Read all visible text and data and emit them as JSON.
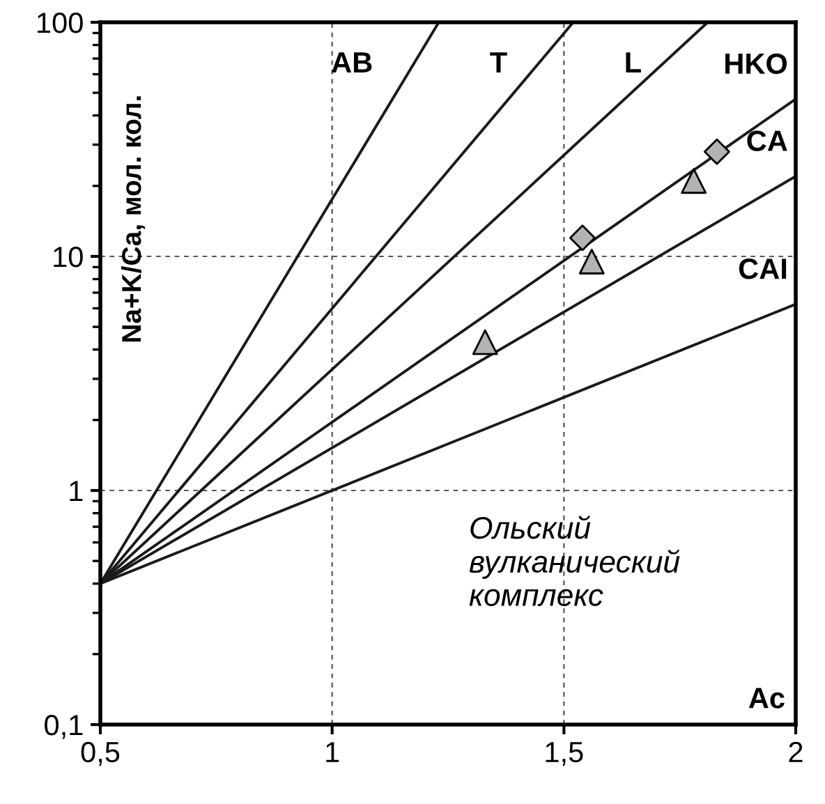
{
  "chart_data": {
    "type": "line",
    "ylabel": "Na+K/Ca, мол. кол.",
    "log": "y",
    "grid": true,
    "line_style": "solid",
    "marker": "none",
    "xlim": [
      0.5,
      2
    ],
    "xticks": [
      {
        "value": 0.5,
        "label": "0,5"
      },
      1,
      {
        "value": 1.5,
        "label": "1,5"
      },
      2
    ],
    "ylim": [
      0.1,
      100
    ],
    "yticks": [
      {
        "value": 0.1,
        "label": "0,1"
      },
      1,
      10,
      100
    ],
    "series": [
      {
        "name": "AB",
        "color": "#1a1a1a",
        "x": [
          0.5,
          1.23
        ],
        "values": [
          0.4,
          100
        ]
      },
      {
        "name": "T",
        "color": "#1a1a1a",
        "x": [
          0.5,
          1.52
        ],
        "values": [
          0.4,
          100
        ]
      },
      {
        "name": "L",
        "color": "#1a1a1a",
        "x": [
          0.5,
          1.81
        ],
        "values": [
          0.4,
          100
        ]
      },
      {
        "name": "HKO",
        "color": "#1a1a1a",
        "x": [
          0.5,
          2
        ],
        "values": [
          0.4,
          47
        ]
      },
      {
        "name": "CA",
        "color": "#1a1a1a",
        "x": [
          0.5,
          2
        ],
        "values": [
          0.4,
          22
        ]
      },
      {
        "name": "CAI",
        "color": "#1a1a1a",
        "x": [
          0.5,
          2
        ],
        "values": [
          0.4,
          6.25
        ]
      },
      {
        "type": "scatter",
        "marker": "triangle",
        "color": "#b3b3b3",
        "x": [
          1.33,
          1.56,
          1.78
        ],
        "values": [
          4.3,
          9.5,
          21
        ]
      },
      {
        "type": "scatter",
        "marker": "diamond",
        "color": "#b3b3b3",
        "x": [
          1.54,
          1.83
        ],
        "values": [
          12,
          28
        ]
      }
    ],
    "annotations": [
      "Ольский\nвулканический\nкомплекс",
      "Ac"
    ]
  }
}
